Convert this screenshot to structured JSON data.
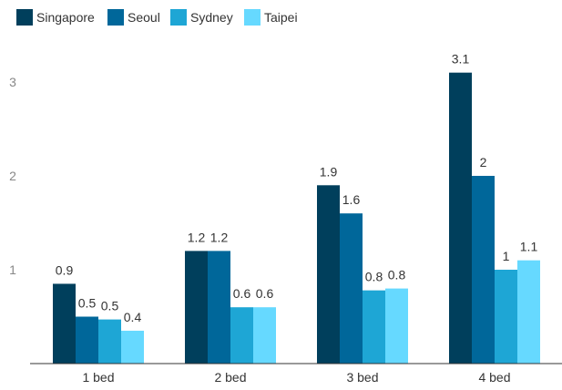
{
  "chart_data": {
    "type": "bar",
    "categories": [
      "1 bed",
      "2 bed",
      "3 bed",
      "4 bed"
    ],
    "series": [
      {
        "name": "Singapore",
        "color": "#003f5c",
        "values": [
          0.85,
          1.2,
          1.9,
          3.1
        ],
        "labels": [
          "0.9",
          "1.2",
          "1.9",
          "3.1"
        ]
      },
      {
        "name": "Seoul",
        "color": "#00679a",
        "values": [
          0.5,
          1.2,
          1.6,
          2.0
        ],
        "labels": [
          "0.5",
          "1.2",
          "1.6",
          "2"
        ]
      },
      {
        "name": "Sydney",
        "color": "#1ea6d5",
        "values": [
          0.47,
          0.6,
          0.78,
          1.0
        ],
        "labels": [
          "0.5",
          "0.6",
          "0.8",
          "1"
        ]
      },
      {
        "name": "Taipei",
        "color": "#66d9ff",
        "values": [
          0.35,
          0.6,
          0.8,
          1.1
        ],
        "labels": [
          "0.4",
          "0.6",
          "0.8",
          "1.1"
        ]
      }
    ],
    "yticks": [
      "1",
      "2",
      "3"
    ],
    "ytick_values": [
      1,
      2,
      3
    ],
    "ylim": [
      0,
      3.2
    ],
    "grid": false,
    "legend_position": "top-left",
    "title": "",
    "xlabel": "",
    "ylabel": ""
  }
}
